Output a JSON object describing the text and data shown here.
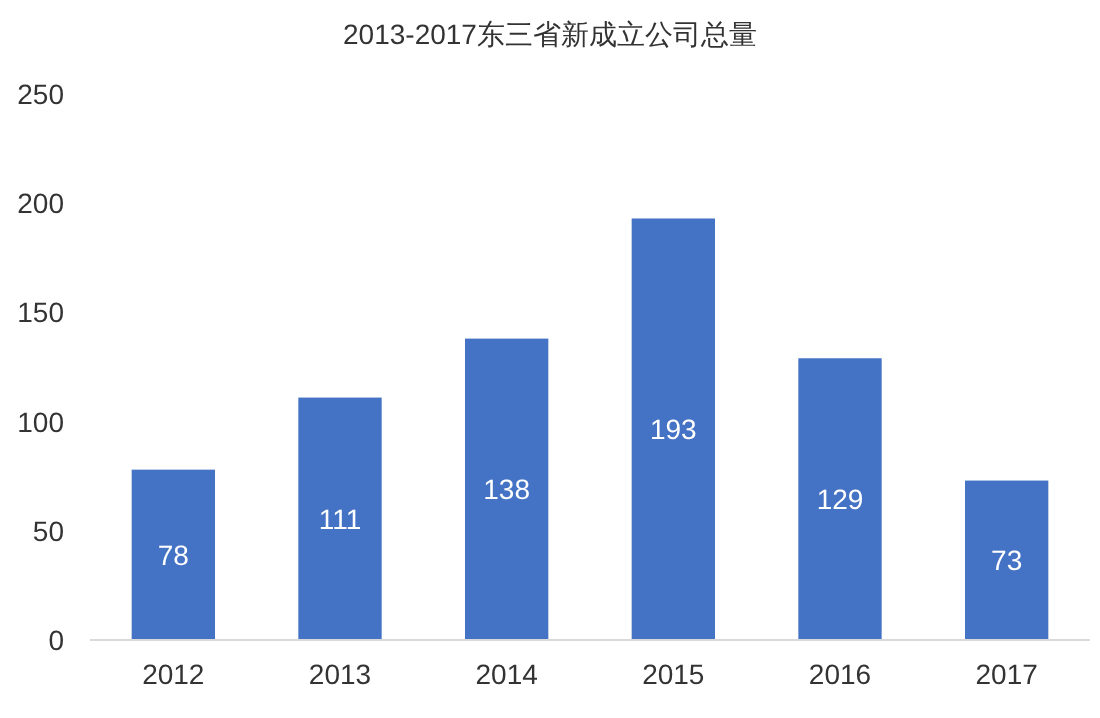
{
  "chart_data": {
    "type": "bar",
    "title": "2013-2017东三省新成立公司总量",
    "categories": [
      "2012",
      "2013",
      "2014",
      "2015",
      "2016",
      "2017"
    ],
    "values": [
      78,
      111,
      138,
      193,
      129,
      73
    ],
    "color": "#4472c4",
    "ylim": [
      0,
      250
    ],
    "yticks": [
      0,
      50,
      100,
      150,
      200,
      250
    ],
    "data_labels": true
  }
}
